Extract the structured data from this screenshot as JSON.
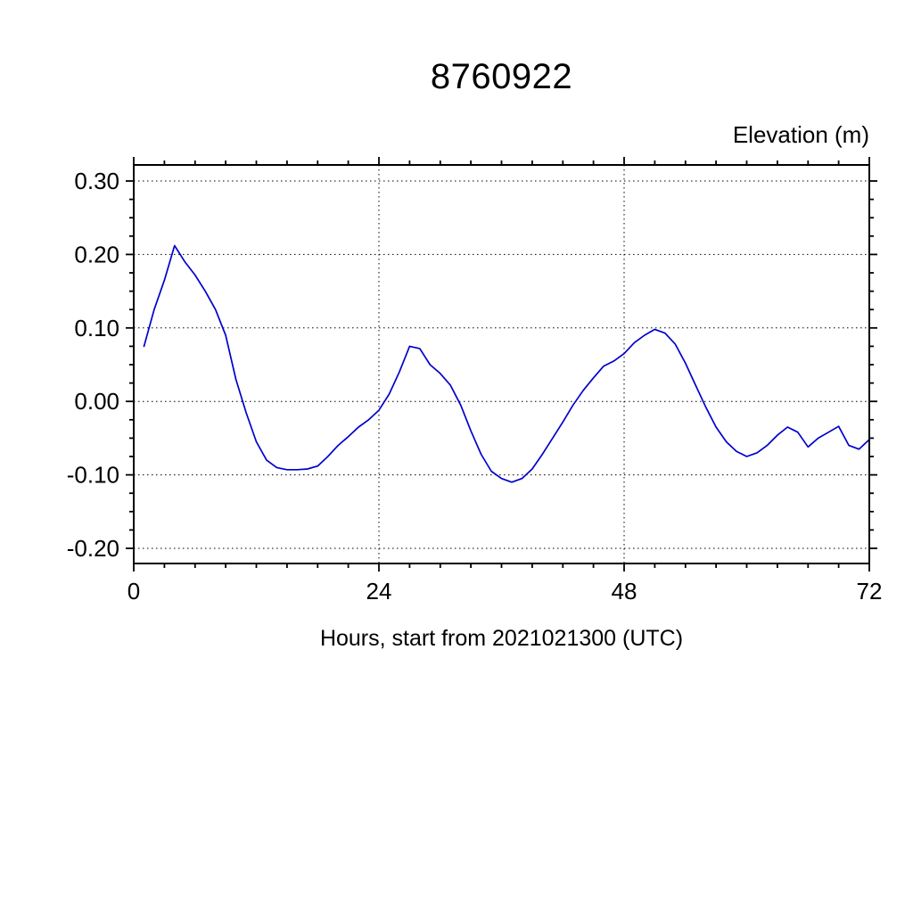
{
  "title": "8760922",
  "y_axis_label": "Elevation (m)",
  "x_axis_label": "Hours, start from 2021021300 (UTC)",
  "chart_data": {
    "type": "line",
    "title": "8760922",
    "xlabel": "Hours, start from 2021021300 (UTC)",
    "ylabel": "Elevation (m)",
    "xlim": [
      0,
      72
    ],
    "ylim": [
      -0.2,
      0.3
    ],
    "grid": true,
    "legend": "none",
    "line_color": "#0000cd",
    "x_major_ticks": [
      0,
      24,
      48,
      72
    ],
    "x_tick_labels": [
      "0",
      "24",
      "48",
      "72"
    ],
    "x_minor_step": 3,
    "y_major_ticks": [
      0.3,
      0.2,
      0.1,
      0.0,
      -0.1,
      -0.2
    ],
    "y_tick_labels": [
      "0.30",
      "0.20",
      "0.10",
      "0.00",
      "-0.10",
      "-0.20"
    ],
    "y_minor_step": 0.025,
    "series": [
      {
        "name": "elevation",
        "x": [
          1,
          2,
          3,
          4,
          5,
          6,
          7,
          8,
          9,
          10,
          11,
          12,
          13,
          14,
          15,
          16,
          17,
          18,
          19,
          20,
          21,
          22,
          23,
          24,
          25,
          26,
          27,
          28,
          29,
          30,
          31,
          32,
          33,
          34,
          35,
          36,
          37,
          38,
          39,
          40,
          41,
          42,
          43,
          44,
          45,
          46,
          47,
          48,
          49,
          50,
          51,
          52,
          53,
          54,
          55,
          56,
          57,
          58,
          59,
          60,
          61,
          62,
          63,
          64,
          65,
          66,
          67,
          68,
          69,
          70,
          71,
          72
        ],
        "y": [
          0.075,
          0.125,
          0.165,
          0.212,
          0.19,
          0.172,
          0.15,
          0.125,
          0.09,
          0.03,
          -0.015,
          -0.055,
          -0.08,
          -0.09,
          -0.093,
          -0.093,
          -0.092,
          -0.088,
          -0.075,
          -0.06,
          -0.048,
          -0.035,
          -0.025,
          -0.012,
          0.01,
          0.04,
          0.075,
          0.072,
          0.05,
          0.038,
          0.022,
          -0.005,
          -0.04,
          -0.072,
          -0.095,
          -0.105,
          -0.11,
          -0.105,
          -0.092,
          -0.072,
          -0.05,
          -0.028,
          -0.005,
          0.015,
          0.032,
          0.048,
          0.055,
          0.065,
          0.08,
          0.09,
          0.098,
          0.093,
          0.078,
          0.052,
          0.022,
          -0.008,
          -0.035,
          -0.055,
          -0.068,
          -0.075,
          -0.07,
          -0.06,
          -0.046,
          -0.035,
          -0.042,
          -0.062,
          -0.05,
          -0.042,
          -0.034,
          -0.06,
          -0.065,
          -0.052
        ]
      }
    ]
  }
}
